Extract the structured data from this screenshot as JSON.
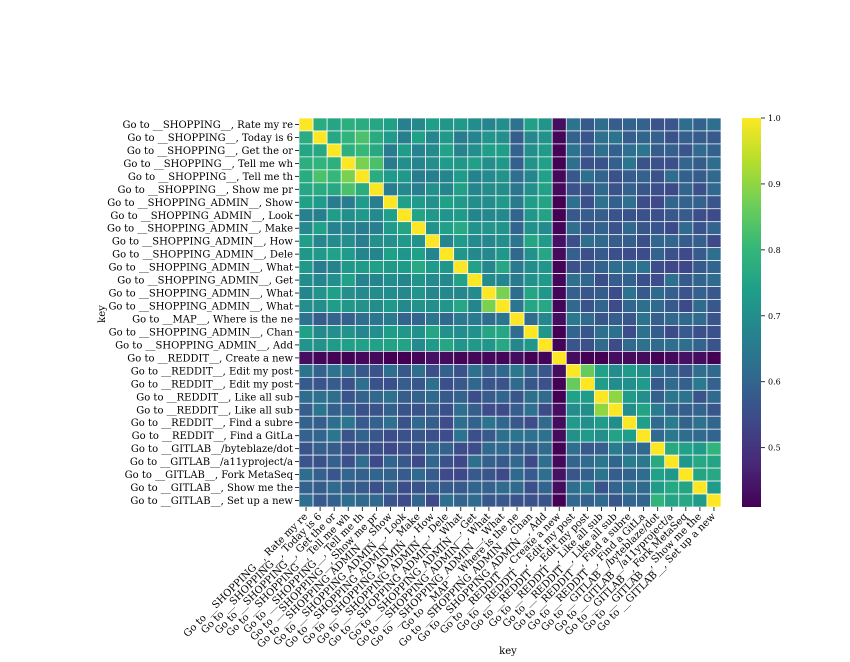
{
  "chart_data": {
    "type": "heatmap",
    "xlabel": "key",
    "ylabel": "key",
    "labels": [
      "Go to __SHOPPING__, Rate my re",
      "Go to __SHOPPING__, Today is 6",
      "Go to __SHOPPING__, Get the or",
      "Go to __SHOPPING__, Tell me wh",
      "Go to __SHOPPING__, Tell me th",
      "Go to __SHOPPING__, Show me pr",
      "Go to __SHOPPING_ADMIN__, Show",
      "Go to __SHOPPING_ADMIN__, Look",
      "Go to __SHOPPING_ADMIN__, Make",
      "Go to __SHOPPING_ADMIN__, How",
      "Go to __SHOPPING_ADMIN__, Dele",
      "Go to __SHOPPING_ADMIN__, What",
      "Go to __SHOPPING_ADMIN__, Get",
      "Go to __SHOPPING_ADMIN__, What",
      "Go to __SHOPPING_ADMIN__, What",
      "Go to __MAP__, Where is the ne",
      "Go to __SHOPPING_ADMIN__, Chan",
      "Go to __SHOPPING_ADMIN__, Add",
      "Go to __REDDIT__, Create a new",
      "Go to __REDDIT__, Edit my post",
      "Go to __REDDIT__, Edit my post",
      "Go to __REDDIT__, Like all sub",
      "Go to __REDDIT__, Like all sub",
      "Go to __REDDIT__, Find a subre",
      "Go to __REDDIT__, Find a GitLa",
      "Go to __GITLAB__/byteblaze/dot",
      "Go to __GITLAB__/a11yproject/a",
      "Go to __GITLAB__, Fork MetaSeq",
      "Go to __GITLAB__, Show me the",
      "Go to __GITLAB__, Set up a new"
    ],
    "groups": [
      0,
      0,
      0,
      0,
      0,
      0,
      1,
      1,
      1,
      1,
      1,
      1,
      1,
      1,
      1,
      2,
      1,
      1,
      3,
      3,
      3,
      3,
      3,
      3,
      3,
      4,
      4,
      4,
      4,
      4
    ],
    "within_group_similarity": {
      "SHOPPING": 0.8,
      "SHOPPING_ADMIN": 0.72,
      "MAP": 0.62,
      "REDDIT": 0.72,
      "GITLAB": 0.75
    },
    "notable_values": {
      "reddit_create_row": 0.42,
      "map_vs_others": 0.62,
      "diagonal": 1.0
    },
    "colorbar": {
      "colormap": "viridis",
      "vmin": 0.41,
      "vmax": 1.0,
      "ticks": [
        0.5,
        0.6,
        0.7,
        0.8,
        0.9,
        1.0
      ],
      "tick_labels": [
        "0.5",
        "0.6",
        "0.7",
        "0.8",
        "0.9",
        "1.0"
      ]
    }
  }
}
